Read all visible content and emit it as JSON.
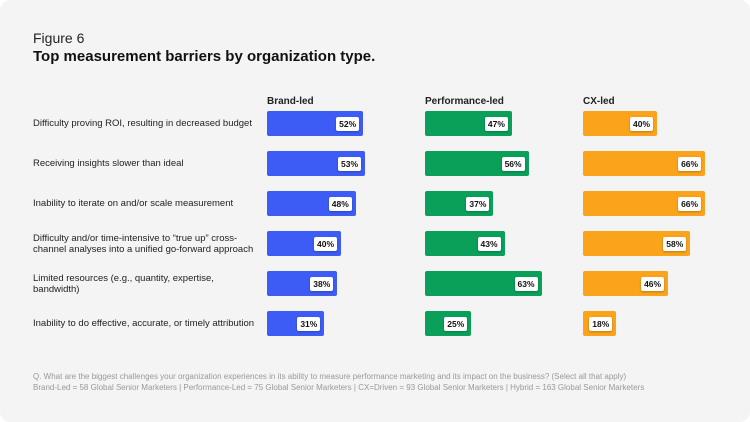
{
  "figure_label": "Figure 6",
  "chart_data": {
    "type": "bar",
    "title": "Top measurement barriers by organization type.",
    "categories": [
      "Difficulty proving ROI, resulting in decreased budget",
      "Receiving insights slower than ideal",
      "Inability to iterate on and/or scale measurement",
      "Difficulty and/or time-intensive to “true up” cross-channel analyses into a unified go-forward approach",
      "Limited resources (e.g., quantity, expertise, bandwidth)",
      "Inability to do effective, accurate, or timely attribution"
    ],
    "series": [
      {
        "name": "Brand-led",
        "color": "#3d5cf5",
        "values": [
          52,
          53,
          48,
          40,
          38,
          31
        ]
      },
      {
        "name": "Performance-led",
        "color": "#0aa05a",
        "values": [
          47,
          56,
          37,
          43,
          63,
          25
        ]
      },
      {
        "name": "CX-led",
        "color": "#fba31a",
        "values": [
          40,
          66,
          66,
          58,
          46,
          18
        ]
      }
    ],
    "unit": "%"
  },
  "footnote": {
    "question": "Q. What are the biggest challenges your organization experiences in its ability to measure performance marketing and its impact on the business? (Select all that apply)",
    "sample": "Brand-Led = 58 Global Senior Marketers | Performance-Led = 75 Global Senior Marketers | CX=Driven = 93 Global Senior Marketers | Hybrid = 163 Global Senior Marketers"
  }
}
